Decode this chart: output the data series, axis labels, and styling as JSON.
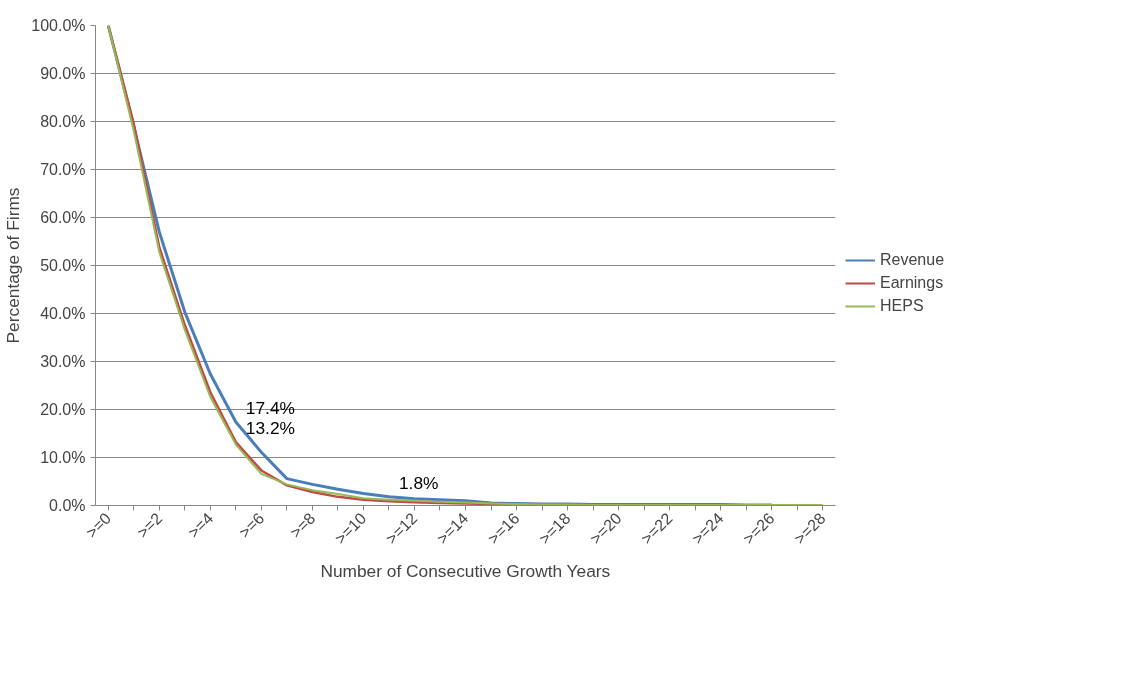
{
  "chart_data": {
    "type": "line",
    "xlabel": "Number of Consecutive Growth Years",
    "ylabel": "Percentage of Firms",
    "categories": [
      ">=0",
      null,
      ">=2",
      null,
      ">=4",
      null,
      ">=6",
      null,
      ">=8",
      null,
      ">=10",
      null,
      ">=12",
      null,
      ">=14",
      null,
      ">=16",
      null,
      ">=18",
      null,
      ">=20",
      null,
      ">=22",
      null,
      ">=24",
      null,
      ">=26",
      null,
      ">=28"
    ],
    "series": [
      {
        "name": "Revenue",
        "color": "#4a7ebb",
        "values": [
          100,
          79,
          57,
          40.3,
          27.4,
          17.4,
          11.1,
          5.6,
          4.4,
          3.4,
          2.5,
          1.8,
          1.4,
          1.2,
          1.0,
          0.5,
          0.4,
          0.3,
          0.3,
          0.2,
          0.2,
          0.2,
          0.2,
          0.2,
          0.2,
          0.1,
          0.1,
          null,
          null
        ],
        "value_labels": [
          null,
          null,
          null,
          null,
          null,
          "17.4%",
          null,
          null,
          null,
          null,
          null,
          "1.8%",
          null,
          null,
          null,
          null,
          null,
          null,
          null,
          null,
          null,
          null,
          null,
          null,
          null,
          null,
          null,
          null,
          null
        ]
      },
      {
        "name": "Earnings",
        "color": "#be4b48",
        "values": [
          100,
          79.5,
          53.8,
          37.6,
          23.6,
          13.2,
          7.3,
          4.2,
          2.8,
          1.8,
          1.2,
          0.9,
          0.7,
          0.5,
          0.4,
          0.3,
          0.2,
          0.1,
          null,
          null,
          null,
          null,
          null,
          null,
          null,
          null,
          null,
          null,
          null
        ],
        "value_labels": [
          null,
          null,
          null,
          null,
          null,
          "13.2%",
          null,
          null,
          null,
          null,
          null,
          null,
          null,
          null,
          null,
          null,
          null,
          null,
          null,
          null,
          null,
          null,
          null,
          null,
          null,
          null,
          null,
          null,
          null
        ]
      },
      {
        "name": "HEPS",
        "color": "#98b954",
        "values": [
          100,
          78,
          52.8,
          36.6,
          22.6,
          12.7,
          6.6,
          4.4,
          3.2,
          2.4,
          1.5,
          1.2,
          1.0,
          0.8,
          0.6,
          0.4,
          0.3,
          0.2,
          0.2,
          0.1,
          0.1,
          0.1,
          0.1,
          0.1,
          0.1,
          0.1,
          0.1,
          0.1,
          0.1
        ]
      }
    ],
    "ylim": [
      0,
      100
    ],
    "yticks": [
      {
        "value": 0,
        "label": "0.0%"
      },
      {
        "value": 10,
        "label": "10.0%"
      },
      {
        "value": 20,
        "label": "20.0%"
      },
      {
        "value": 30,
        "label": "30.0%"
      },
      {
        "value": 40,
        "label": "40.0%"
      },
      {
        "value": 50,
        "label": "50.0%"
      },
      {
        "value": 60,
        "label": "60.0%"
      },
      {
        "value": 70,
        "label": "70.0%"
      },
      {
        "value": 80,
        "label": "80.0%"
      },
      {
        "value": 90,
        "label": "90.0%"
      },
      {
        "value": 100,
        "label": "100.0%"
      }
    ],
    "grid": "y",
    "legend": "right",
    "marker": "none",
    "line_style": "solid"
  }
}
